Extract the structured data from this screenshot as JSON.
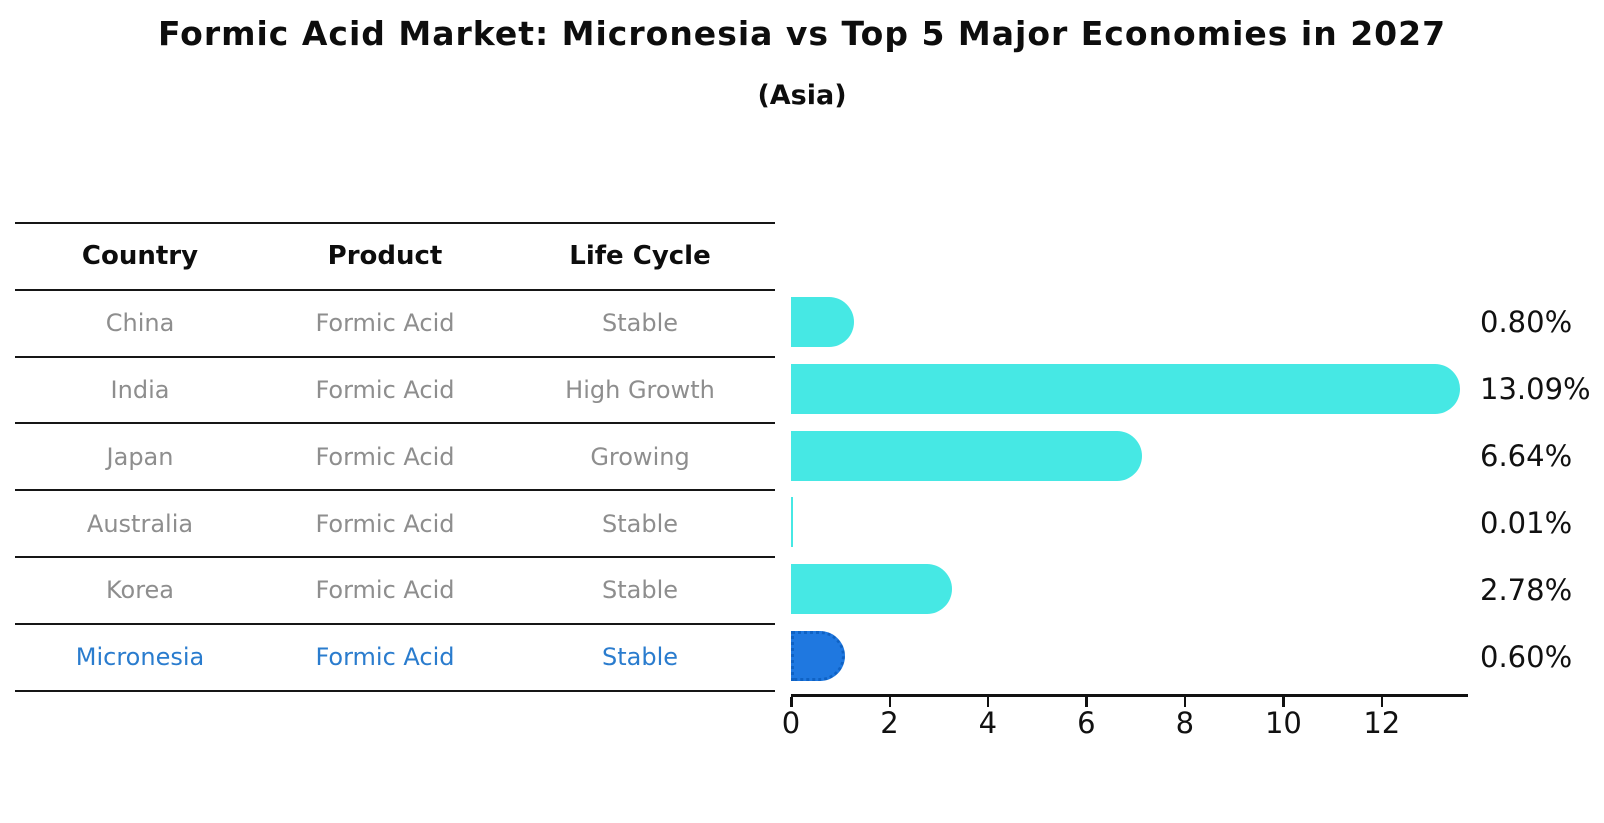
{
  "title": "Formic Acid Market: Micronesia vs Top 5 Major Economies in 2027",
  "subtitle": "(Asia)",
  "table": {
    "headers": [
      "Country",
      "Product",
      "Life Cycle"
    ],
    "rows": [
      {
        "country": "China",
        "product": "Formic Acid",
        "life_cycle": "Stable",
        "highlight": false
      },
      {
        "country": "India",
        "product": "Formic Acid",
        "life_cycle": "High Growth",
        "highlight": false
      },
      {
        "country": "Japan",
        "product": "Formic Acid",
        "life_cycle": "Growing",
        "highlight": false
      },
      {
        "country": "Australia",
        "product": "Formic Acid",
        "life_cycle": "Stable",
        "highlight": false
      },
      {
        "country": "Korea",
        "product": "Formic Acid",
        "life_cycle": "Stable",
        "highlight": false
      },
      {
        "country": "Micronesia",
        "product": "Formic Acid",
        "life_cycle": "Stable",
        "highlight": true
      }
    ]
  },
  "chart_data": {
    "type": "bar",
    "orientation": "horizontal",
    "title": "Formic Acid Market: Micronesia vs Top 5 Major Economies in 2027",
    "subtitle": "(Asia)",
    "categories": [
      "China",
      "India",
      "Japan",
      "Australia",
      "Korea",
      "Micronesia"
    ],
    "values": [
      0.8,
      13.09,
      6.64,
      0.01,
      2.78,
      0.6
    ],
    "value_labels": [
      "0.80%",
      "13.09%",
      "6.64%",
      "0.01%",
      "2.78%",
      "0.60%"
    ],
    "x_ticks": [
      0,
      2,
      4,
      6,
      8,
      10,
      12
    ],
    "xlim": [
      0,
      13.75
    ],
    "grid": false,
    "legend": "none",
    "highlight_index": 5
  },
  "colors": {
    "bar": "#46e8e4",
    "highlight_bar": "#1f78e0",
    "highlight_border": "#0f62c4",
    "highlight_text": "#2a7cce",
    "muted_text": "#8e8e8e",
    "ink": "#111111"
  }
}
